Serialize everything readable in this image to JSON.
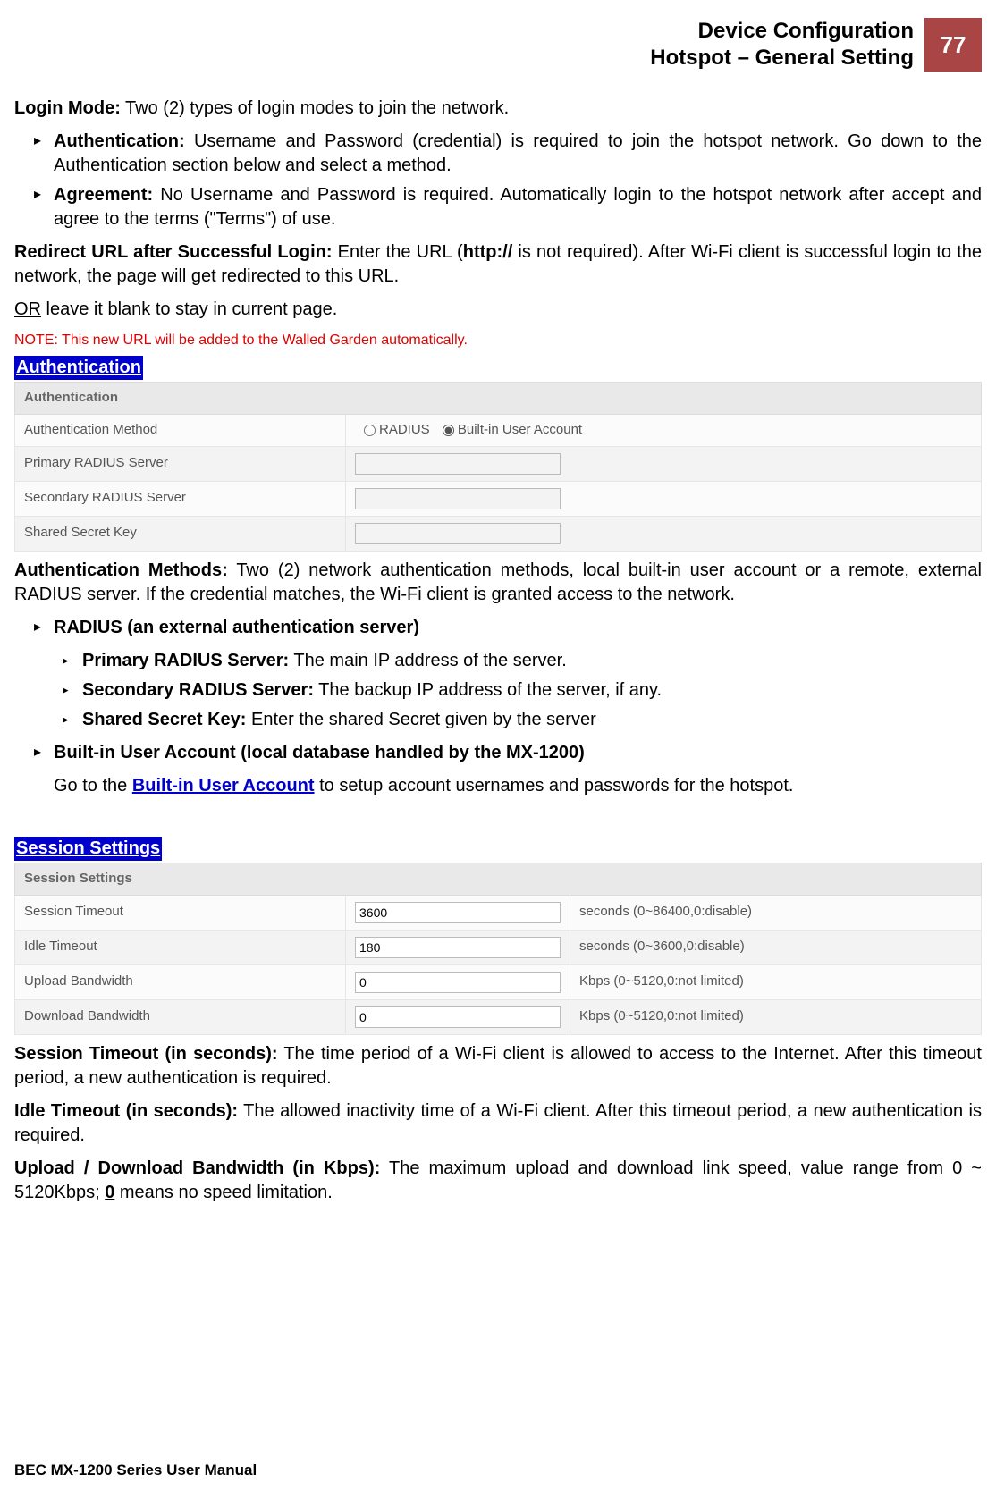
{
  "header": {
    "title_line1": "Device Configuration",
    "title_line2": "Hotspot – General Setting",
    "page_number": "77"
  },
  "login_mode": {
    "heading_bold": "Login Mode:",
    "heading_rest": " Two (2) types of login modes to join the network.",
    "auth_bold": "Authentication:",
    "auth_rest": " Username and Password (credential) is required to join the hotspot network. Go down to the Authentication section below and select a method.",
    "agree_bold": "Agreement:",
    "agree_rest": " No Username and Password is required.  Automatically login to the hotspot network after accept and agree to the terms (\"Terms\") of use."
  },
  "redirect": {
    "bold": "Redirect URL after Successful Login:  ",
    "text1": "Enter the URL (",
    "http_bold": "http://",
    "text2": " is not required).  After Wi-Fi client is successful login to the network, the page will get redirected to this URL.",
    "or_underline": "OR",
    "or_rest": " leave it blank to stay in current page.",
    "note": "NOTE: This new URL will be added to the Walled Garden automatically."
  },
  "auth_section": {
    "label": "Authentication",
    "table": {
      "header": "Authentication",
      "rows": {
        "method": {
          "label": "Authentication Method",
          "radio1": "RADIUS",
          "radio2": "Built-in User Account",
          "selected": "builtin"
        },
        "primary": {
          "label": "Primary RADIUS Server",
          "value": ""
        },
        "secondary": {
          "label": "Secondary RADIUS Server",
          "value": ""
        },
        "shared": {
          "label": "Shared Secret Key",
          "value": ""
        }
      }
    },
    "methods_bold": "Authentication Methods:",
    "methods_rest": " Two (2) network authentication methods, local built-in user account or a remote, external RADIUS server.  If the credential matches, the Wi-Fi client is granted access to the network.",
    "radius_heading": "RADIUS (an external authentication server)",
    "primary_bold": "Primary RADIUS Server:",
    "primary_rest": " The main IP address of the server.",
    "secondary_bold": "Secondary RADIUS Server:",
    "secondary_rest": " The backup IP address of the server, if any.",
    "shared_bold": "Shared Secret Key:",
    "shared_rest": " Enter the shared Secret given by the server",
    "builtin_heading": "Built-in User Account (local database handled by the MX-1200)",
    "builtin_text_pre": "Go to the ",
    "builtin_link": "Built-in User Account",
    "builtin_text_post": " to setup account usernames and passwords for the hotspot."
  },
  "session_section": {
    "label": "Session Settings",
    "table": {
      "header": "Session Settings",
      "rows": {
        "session_timeout": {
          "label": "Session Timeout",
          "value": "3600",
          "hint": "seconds (0~86400,0:disable)"
        },
        "idle_timeout": {
          "label": "Idle Timeout",
          "value": "180",
          "hint": "seconds (0~3600,0:disable)"
        },
        "upload_bw": {
          "label": "Upload Bandwidth",
          "value": "0",
          "hint": "Kbps (0~5120,0:not limited)"
        },
        "download_bw": {
          "label": "Download Bandwidth",
          "value": "0",
          "hint": "Kbps (0~5120,0:not limited)"
        }
      }
    },
    "session_timeout_bold": "Session Timeout (in seconds):",
    "session_timeout_rest": " The time period of a Wi-Fi client is allowed to access to the Internet. After this timeout period, a new authentication is required.",
    "idle_timeout_bold": "Idle Timeout (in seconds):",
    "idle_timeout_rest": " The allowed inactivity time of a Wi-Fi client.  After this timeout period, a new authentication is required.",
    "bw_bold": "Upload / Download Bandwidth (in Kbps):",
    "bw_rest_pre": " The maximum upload and download link speed, value range from 0 ~ 5120Kbps; ",
    "bw_zero": "0",
    "bw_rest_post": " means no speed limitation."
  },
  "footer": "BEC MX-1200 Series User Manual",
  "colors": {
    "page_number_bg": "#a94545",
    "section_label_bg": "#0000cc",
    "note_red": "#e00000",
    "link_blue": "#0000cc"
  }
}
